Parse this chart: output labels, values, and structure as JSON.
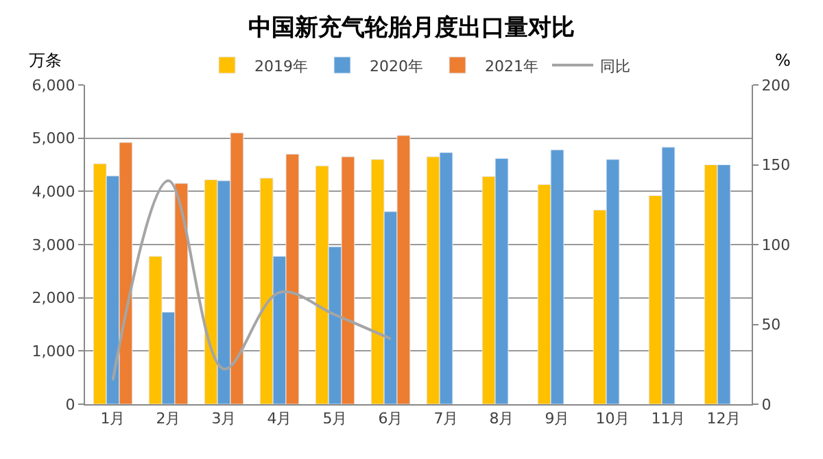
{
  "chart_data": {
    "type": "bar",
    "title": "中国新充气轮胎月度出口量对比",
    "ylabel": "万条",
    "y2label": "%",
    "categories": [
      "1月",
      "2月",
      "3月",
      "4月",
      "5月",
      "6月",
      "7月",
      "8月",
      "9月",
      "10月",
      "11月",
      "12月"
    ],
    "series": [
      {
        "name": "2019年",
        "color": "#ffc000",
        "values": [
          4520,
          2780,
          4220,
          4250,
          4480,
          4600,
          4650,
          4280,
          4130,
          3650,
          3920,
          4500
        ]
      },
      {
        "name": "2020年",
        "color": "#5b9bd5",
        "values": [
          4290,
          1730,
          4200,
          2780,
          2960,
          3620,
          4730,
          4620,
          4780,
          4600,
          4830,
          4500
        ]
      },
      {
        "name": "2021年",
        "color": "#ed7d31",
        "values": [
          4920,
          4150,
          5100,
          4700,
          4650,
          5050,
          null,
          null,
          null,
          null,
          null,
          null
        ]
      },
      {
        "name": "同比",
        "type": "line",
        "axis": "y2",
        "color": "#a5a5a5",
        "values": [
          15,
          140,
          22,
          70,
          56,
          41,
          null,
          null,
          null,
          null,
          null,
          null
        ]
      }
    ],
    "ylim": [
      0,
      6000
    ],
    "yticks": [
      0,
      {
        "value": 1000,
        "label": "1,000"
      },
      {
        "value": 2000,
        "label": "2,000"
      },
      {
        "value": 3000,
        "label": "3,000"
      },
      {
        "value": 4000,
        "label": "4,000"
      },
      {
        "value": 5000,
        "label": "5,000"
      },
      {
        "value": 6000,
        "label": "6,000"
      }
    ],
    "y2lim": [
      0,
      200
    ],
    "y2ticks": [
      0,
      50,
      100,
      150,
      200
    ],
    "grid": "y",
    "legend": "top",
    "marker": "none",
    "line_style": "solid"
  }
}
